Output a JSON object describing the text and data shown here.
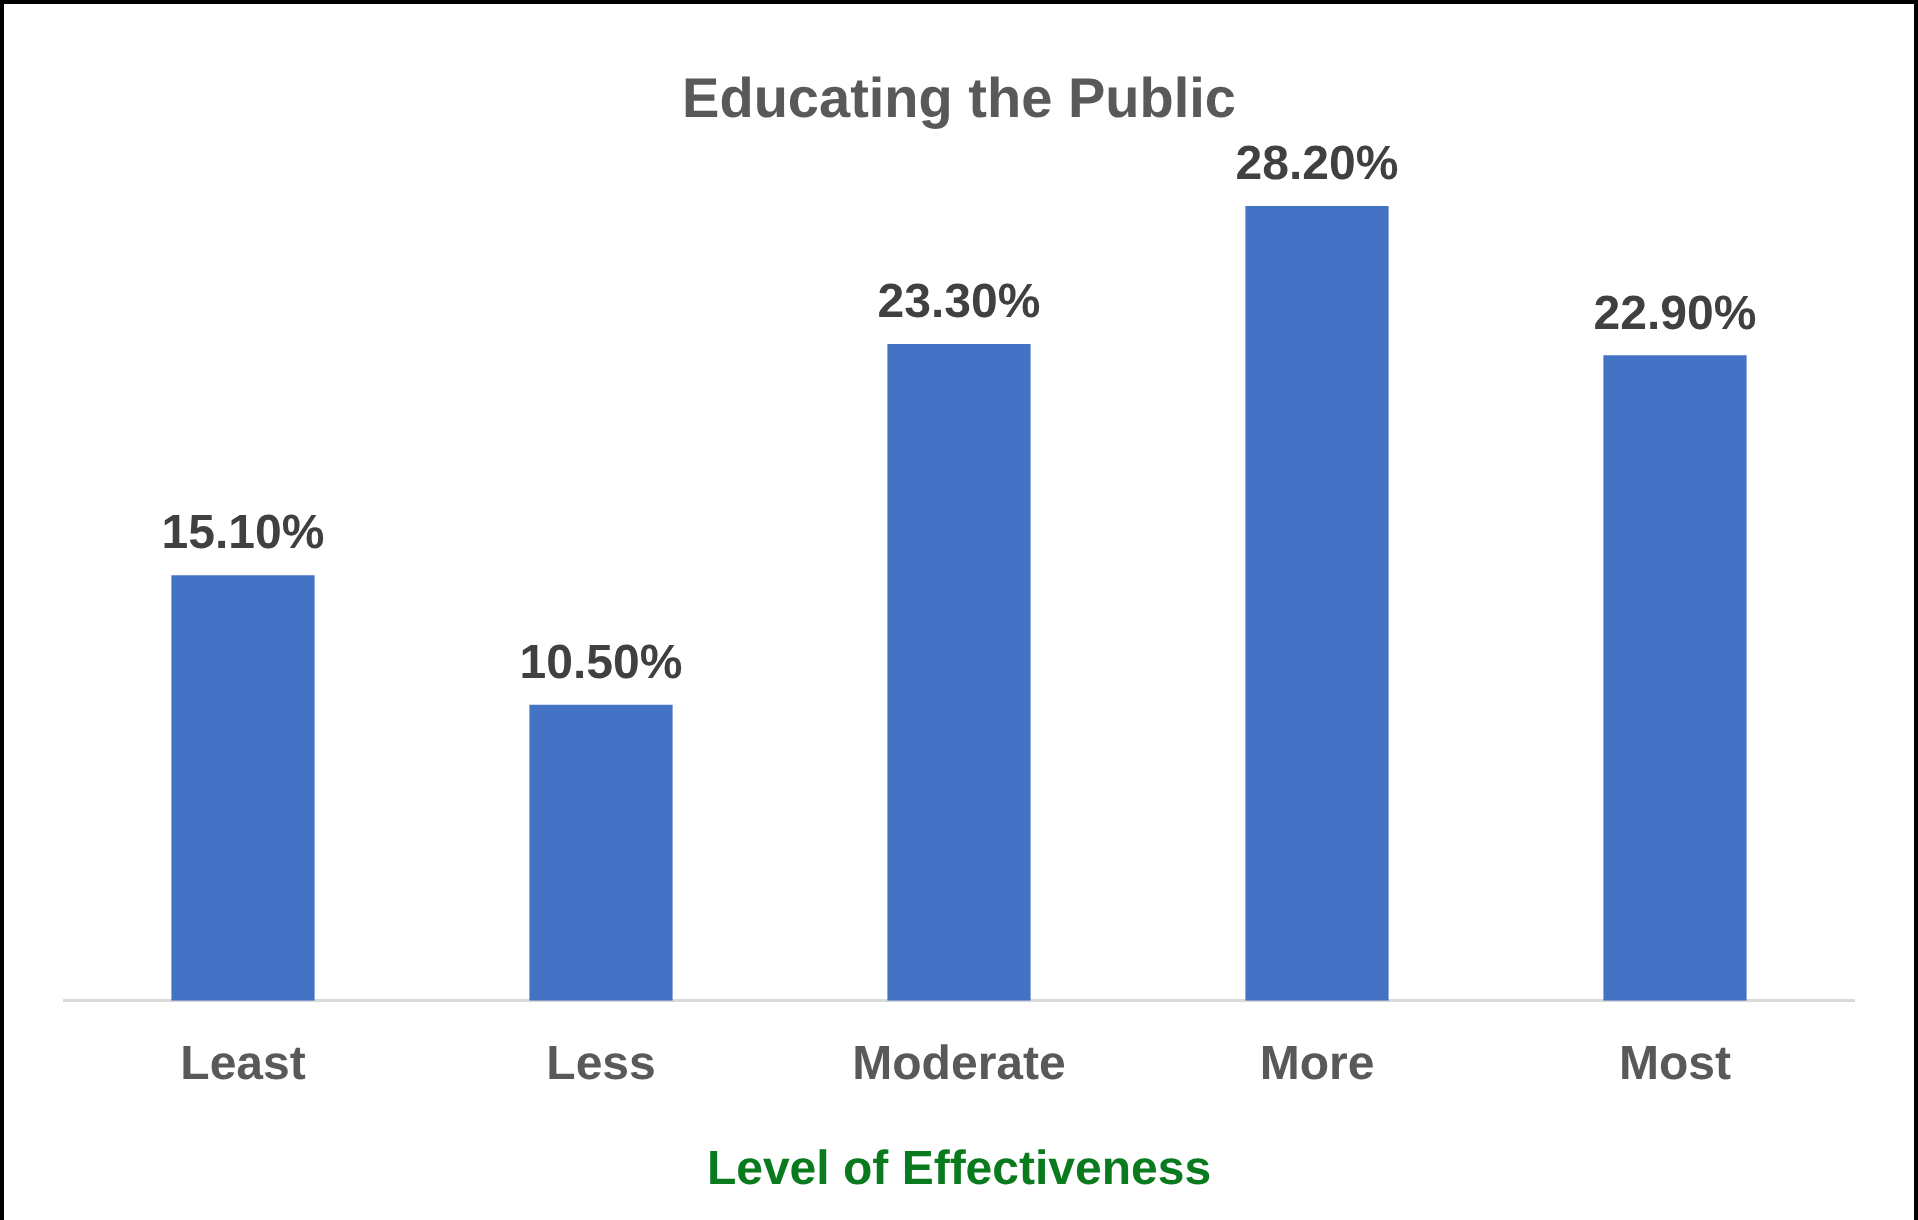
{
  "chart_data": {
    "type": "bar",
    "title": "Educating the Public",
    "xlabel": "Level of Effectiveness",
    "categories": [
      "Least",
      "Less",
      "Moderate",
      "More",
      "Most"
    ],
    "values": [
      15.1,
      10.5,
      23.3,
      28.2,
      22.9
    ],
    "value_labels": [
      "15.10%",
      "10.50%",
      "23.30%",
      "28.20%",
      "22.90%"
    ],
    "color": "#4472c4",
    "grid": false,
    "legend": false,
    "tick_labels": "x"
  }
}
